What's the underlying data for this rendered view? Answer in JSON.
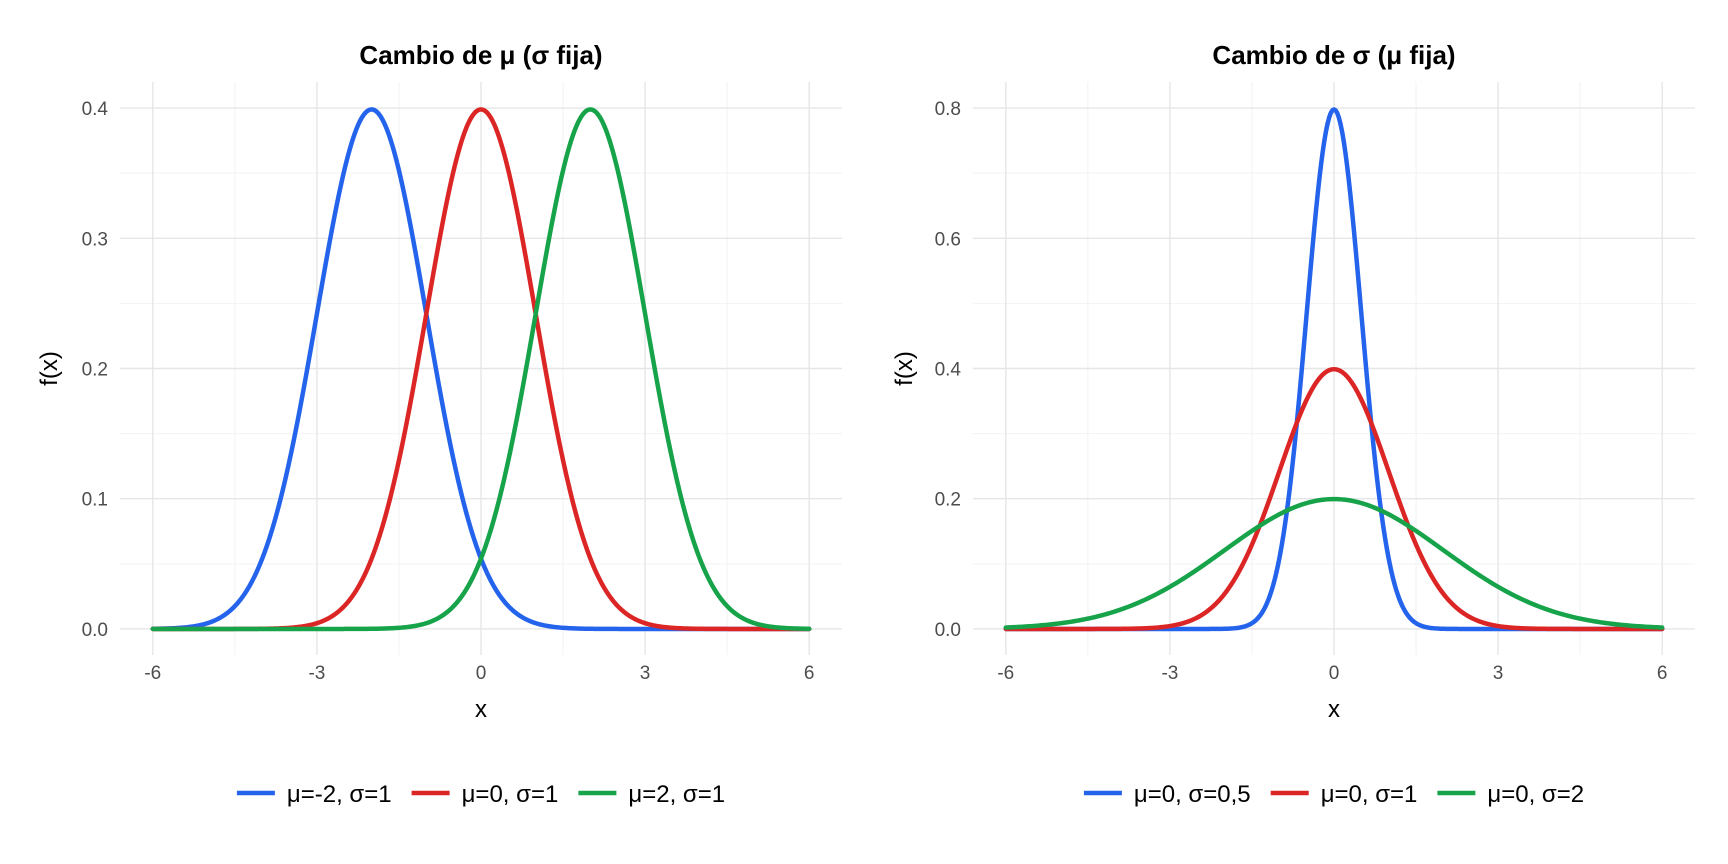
{
  "chart_data": [
    {
      "type": "line",
      "title": "Cambio de μ (σ fija)",
      "xlabel": "x",
      "ylabel": "f(x)",
      "xlim": [
        -6,
        6
      ],
      "ylim": [
        0,
        0.4
      ],
      "xticks": [
        -6,
        -3,
        0,
        3,
        6
      ],
      "yticks": [
        0.0,
        0.1,
        0.2,
        0.3,
        0.4
      ],
      "xtick_labels": [
        "-6",
        "-3",
        "0",
        "3",
        "6"
      ],
      "ytick_labels": [
        "0.0",
        "0.1",
        "0.2",
        "0.3",
        "0.4"
      ],
      "grid": true,
      "legend_position": "bottom",
      "series": [
        {
          "name": "μ=-2, σ=1",
          "mu": -2,
          "sigma": 1,
          "color": "#2463EB"
        },
        {
          "name": "μ=0, σ=1",
          "mu": 0,
          "sigma": 1,
          "color": "#DC2626"
        },
        {
          "name": "μ=2, σ=1",
          "mu": 2,
          "sigma": 1,
          "color": "#16A34A"
        }
      ]
    },
    {
      "type": "line",
      "title": "Cambio de σ (μ fija)",
      "xlabel": "x",
      "ylabel": "f(x)",
      "xlim": [
        -6,
        6
      ],
      "ylim": [
        0,
        0.8
      ],
      "xticks": [
        -6,
        -3,
        0,
        3,
        6
      ],
      "yticks": [
        0.0,
        0.2,
        0.4,
        0.6,
        0.8
      ],
      "xtick_labels": [
        "-6",
        "-3",
        "0",
        "3",
        "6"
      ],
      "ytick_labels": [
        "0.0",
        "0.2",
        "0.4",
        "0.6",
        "0.8"
      ],
      "grid": true,
      "legend_position": "bottom",
      "series": [
        {
          "name": "μ=0, σ=0,5",
          "mu": 0,
          "sigma": 0.5,
          "color": "#2463EB"
        },
        {
          "name": "μ=0, σ=1",
          "mu": 0,
          "sigma": 1,
          "color": "#DC2626"
        },
        {
          "name": "μ=0, σ=2",
          "mu": 0,
          "sigma": 2,
          "color": "#16A34A"
        }
      ]
    }
  ]
}
